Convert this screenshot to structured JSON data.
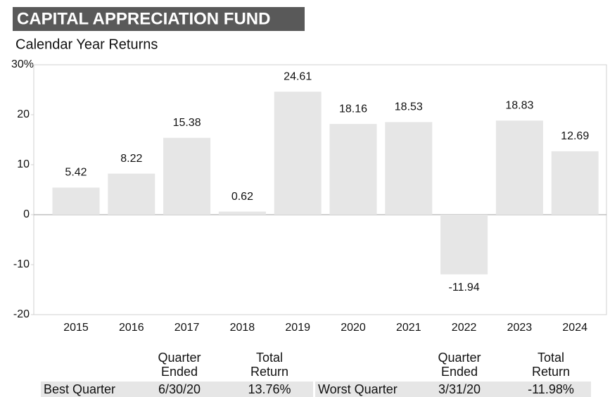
{
  "chart_data": {
    "type": "bar",
    "title": "CAPITAL APPRECIATION FUND",
    "subtitle": "Calendar Year Returns",
    "categories": [
      "2015",
      "2016",
      "2017",
      "2018",
      "2019",
      "2020",
      "2021",
      "2022",
      "2023",
      "2024"
    ],
    "values": [
      5.42,
      8.22,
      15.38,
      0.62,
      24.61,
      18.16,
      18.53,
      -11.94,
      18.83,
      12.69
    ],
    "color": "#e6e6e6",
    "ylim": [
      -20,
      30
    ],
    "yticks": [
      -20,
      -10,
      0,
      10,
      20,
      {
        "value": 30,
        "label": "30%"
      }
    ]
  },
  "table": {
    "headers": [
      "Quarter Ended",
      "Total Return",
      "Quarter Ended",
      "Total Return"
    ],
    "rows": [
      [
        "Best Quarter",
        "6/30/20",
        "13.76%",
        "Worst Quarter",
        "3/31/20",
        "-11.98%"
      ]
    ]
  }
}
